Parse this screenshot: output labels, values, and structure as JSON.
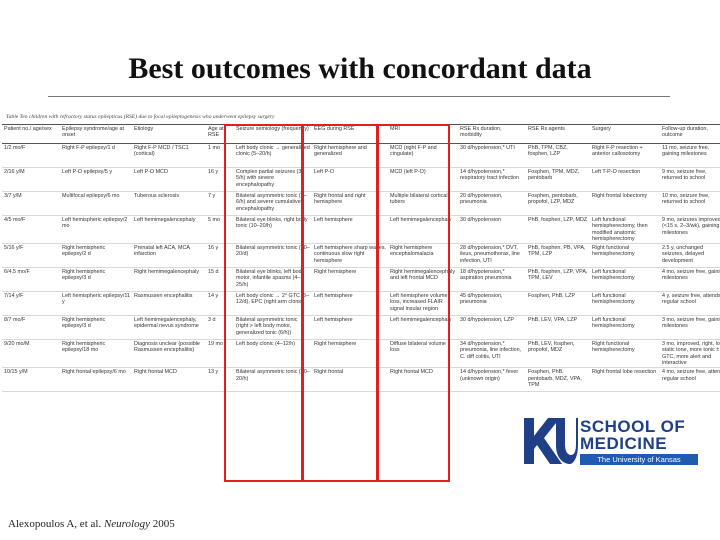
{
  "slide": {
    "title": "Best outcomes with concordant data",
    "citation_authors": "Alexopoulos A, et al.",
    "citation_journal": "Neurology",
    "citation_year": "2005"
  },
  "table": {
    "caption": "Table Ten children with refractory status epilepticus (RSE) due to focal epileptogenesis who underwent epilepsy surgery",
    "headers": [
      "Patient no./ age/sex",
      "Epilepsy syndrome/age at onset",
      "Etiology",
      "Age at RSE",
      "Seizure semiology (frequency)",
      "EEG during RSE",
      "MRI",
      "RSE Rx duration, morbidity",
      "RSE Rx agents",
      "Surgery",
      "Follow-up duration, outcome"
    ],
    "rows": [
      [
        "1/2 mo/F",
        "Right F-P epilepsy/1 d",
        "Right F-P MCD / TSC1 (cortical)",
        "1 mo",
        "Left body clonic → generalized clonic (5–20/h)",
        "Right hemisphere and generalized",
        "MCD (right F-P and cingulate)",
        "30 d/hypotension,* UTI",
        "PhB, TPM, CBZ, fosphen, LZP",
        "Right F-P resection + anterior callosotomy",
        "11 mo, seizure free, gaining milestones"
      ],
      [
        "2/16 y/M",
        "Left P-O epilepsy/5 y",
        "Left P-O MCD",
        "16 y",
        "Complex partial seizures (3–5/h) with severe encephalopathy",
        "Left P-O",
        "MCD (left P-O)",
        "14 d/hypotension,* respiratory tract infection",
        "Fosphen, TPM, MDZ, pentobarb",
        "Left T-P-O resection",
        "9 mo, seizure free, returned to school"
      ],
      [
        "3/7 y/M",
        "Multifocal epilepsy/6 mo",
        "Tuberous sclerosis",
        "7 y",
        "Bilateral asymmetric tonic (2–6/h) and severe cumulative encephalopathy",
        "Right frontal and right hemisphere",
        "Multiple bilateral cortical tubers",
        "20 d/hypotension, pneumonia",
        "Fosphen, pentobarb, propofol, LZP, MDZ",
        "Right frontal lobectomy",
        "10 mo, seizure free, returned to school"
      ],
      [
        "4/5 mo/F",
        "Left hemispheric epilepsy/2 mo",
        "Left hemimegalencephaly",
        "5 mo",
        "Bilateral eye blinks, right body tonic (10–20/h)",
        "Left hemisphere",
        "Left hemimegalencephaly",
        "30 d/hypotension",
        "PhB, fosphen, LZP, MDZ",
        "Left functional hemispherectomy, then modified anatomic hemispherectomy",
        "9 mo, seizures improved (<15 s, 2–3/wk), gaining milestones"
      ],
      [
        "5/16 y/F",
        "Right hemispheric epilepsy/2 d",
        "Prenatal left ACA, MCA infarction",
        "16 y",
        "Bilateral asymmetric tonic (10–20/d)",
        "Left hemisphere sharp waves, continuous slow right hemisphere",
        "Right hemisphere encephalomalacia",
        "28 d/hypotension,* DVT, ileus, pneumothorax, line infection, UTI",
        "PhB, fosphen, PB, VPA, TPM, LZP",
        "Right functional hemispherectomy",
        "2.5 y, unchanged seizures, delayed development"
      ],
      [
        "6/4.5 mo/F",
        "Right hemispheric epilepsy/3 d",
        "Right hemimegalencephaly",
        "15 d",
        "Bilateral eye blinks, left body motor, infantile spasms (4–25/h)",
        "Right hemisphere",
        "Right hemimegalencephaly and left frontal MCD",
        "18 d/hypotension,* aspiration pneumonia",
        "PhB, fosphen, LZP, VPA, TPM, LEV",
        "Left functional hemispherectomy",
        "4 mo, seizure free, gaining milestones"
      ],
      [
        "7/14 y/F",
        "Left hemispheric epilepsy/11 y",
        "Rasmussen encephalitis",
        "14 y",
        "Left body clonic → 2° GTC (5–12/d), EPC (right arm clonic)",
        "Left hemisphere",
        "Left hemisphere volume loss, increased FLAIR signal insular region",
        "45 d/hypotension, pneumonia",
        "Fosphen, PhB, LZP",
        "Left functional hemispherectomy",
        "4 y, seizure free, attends regular school"
      ],
      [
        "8/7 mo/F",
        "Right hemispheric epilepsy/3 d",
        "Left hemimegalencephaly, epidermal nevus syndrome",
        "3 d",
        "Bilateral asymmetric tonic (right > left body motor, generalized tonic (6/h))",
        "Left hemisphere",
        "Left hemimegalencephaly",
        "30 d/hypotension, LZP",
        "PhB, LEV, VPA, LZP",
        "Left functional hemispherectomy",
        "3 mo, seizure free, gaining milestones"
      ],
      [
        "9/20 mo/M",
        "Right hemispheric epilepsy/18 mo",
        "Diagnosis unclear (possible Rasmussen encephalitis)",
        "19 mo",
        "Left body clonic (4–12/h)",
        "Right hemisphere",
        "Diffuse bilateral volume loss",
        "34 d/hypotension,* pneumonia, line infection, C. diff colitis, UTI",
        "PhB, LEV, fosphen, propofol, MDZ",
        "Right functional hemispherectomy",
        "3 mo, improved, right, low static tone, more tonic ± GTC, more alert and interactive"
      ],
      [
        "10/15 y/M",
        "Right frontal epilepsy/6 mo",
        "Right frontal MCD",
        "13 y",
        "Bilateral asymmetric tonic (10–20/h)",
        "Right frontal",
        "Right frontal MCD",
        "14 d/hypotension,* fever (unknown origin)",
        "Fosphen, PhB, pentobarb, MDZ, VPA, TPM",
        "Right frontal lobe resection",
        "4 mo, seizure free, attends regular school"
      ]
    ]
  },
  "logo": {
    "mark": "KU",
    "line1": "SCHOOL OF",
    "line2": "MEDICINE",
    "line3": "The University of Kansas"
  },
  "colors": {
    "highlight": "#e02020",
    "brand": "#1f3f87"
  }
}
